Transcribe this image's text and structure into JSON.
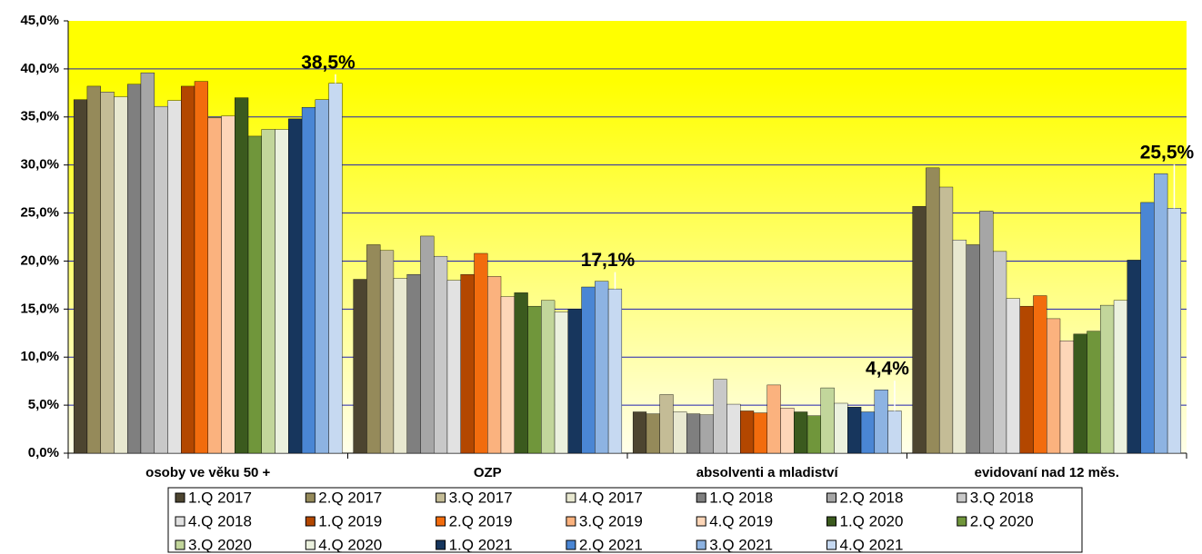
{
  "chart_data": {
    "type": "bar",
    "categories": [
      "osoby ve věku 50 +",
      "OZP",
      "absolventi a mladiství",
      "evidovaní nad 12 měs."
    ],
    "ylim": [
      0,
      45
    ],
    "yticks": [
      {
        "value": 0,
        "label": "0,0%"
      },
      {
        "value": 5,
        "label": "5,0%"
      },
      {
        "value": 10,
        "label": "10,0%"
      },
      {
        "value": 15,
        "label": "15,0%"
      },
      {
        "value": 20,
        "label": "20,0%"
      },
      {
        "value": 25,
        "label": "25,0%"
      },
      {
        "value": 30,
        "label": "30,0%"
      },
      {
        "value": 35,
        "label": "35,0%"
      },
      {
        "value": 40,
        "label": "40,0%"
      },
      {
        "value": 45,
        "label": "45,0%"
      }
    ],
    "grid": true,
    "series": [
      {
        "name": "1.Q 2017",
        "color": "#4d4530",
        "values": [
          36.8,
          18.1,
          4.3,
          25.7
        ]
      },
      {
        "name": "2.Q 2017",
        "color": "#958a5a",
        "values": [
          38.2,
          21.7,
          4.1,
          29.7
        ]
      },
      {
        "name": "3.Q 2017",
        "color": "#c4bc96",
        "values": [
          37.6,
          21.1,
          6.1,
          27.7
        ]
      },
      {
        "name": "4.Q 2017",
        "color": "#e8e8d0",
        "values": [
          37.1,
          18.2,
          4.3,
          22.2
        ]
      },
      {
        "name": "1.Q 2018",
        "color": "#7f7f7f",
        "values": [
          38.4,
          18.6,
          4.1,
          21.7
        ]
      },
      {
        "name": "2.Q 2018",
        "color": "#a6a6a6",
        "values": [
          39.6,
          22.6,
          4.0,
          25.2
        ]
      },
      {
        "name": "3.Q 2018",
        "color": "#c8c8c8",
        "values": [
          36.1,
          20.5,
          7.7,
          21.0
        ]
      },
      {
        "name": "4.Q 2018",
        "color": "#e2e2e2",
        "values": [
          36.7,
          18.0,
          5.1,
          16.1
        ]
      },
      {
        "name": "1.Q 2019",
        "color": "#b34700",
        "values": [
          38.2,
          18.6,
          4.4,
          15.3
        ]
      },
      {
        "name": "2.Q 2019",
        "color": "#f26c0d",
        "values": [
          38.7,
          20.8,
          4.2,
          16.4
        ]
      },
      {
        "name": "3.Q 2019",
        "color": "#fbb27e",
        "values": [
          34.9,
          18.4,
          7.1,
          14.0
        ]
      },
      {
        "name": "4.Q 2019",
        "color": "#fdd6b8",
        "values": [
          35.1,
          16.3,
          4.7,
          11.7
        ]
      },
      {
        "name": "1.Q 2020",
        "color": "#3b5a1e",
        "values": [
          37.0,
          16.7,
          4.3,
          12.4
        ]
      },
      {
        "name": "2.Q 2020",
        "color": "#70963b",
        "values": [
          33.0,
          15.3,
          3.9,
          12.7
        ]
      },
      {
        "name": "3.Q 2020",
        "color": "#c2d69b",
        "values": [
          33.7,
          15.9,
          6.8,
          15.4
        ]
      },
      {
        "name": "4.Q 2020",
        "color": "#ebf1de",
        "values": [
          33.7,
          14.7,
          5.2,
          15.9
        ]
      },
      {
        "name": "1.Q 2021",
        "color": "#17365d",
        "values": [
          34.8,
          15.0,
          4.8,
          20.1
        ]
      },
      {
        "name": "2.Q 2021",
        "color": "#4a86d4",
        "values": [
          36.0,
          17.3,
          4.3,
          26.1
        ]
      },
      {
        "name": "3.Q 2021",
        "color": "#8db3e2",
        "values": [
          36.8,
          17.9,
          6.6,
          29.1
        ]
      },
      {
        "name": "4.Q 2021",
        "color": "#c6d9f1",
        "values": [
          38.5,
          17.1,
          4.4,
          25.5
        ],
        "value_labels": [
          "38,5%",
          "17,1%",
          "4,4%",
          "25,5%"
        ]
      }
    ]
  }
}
